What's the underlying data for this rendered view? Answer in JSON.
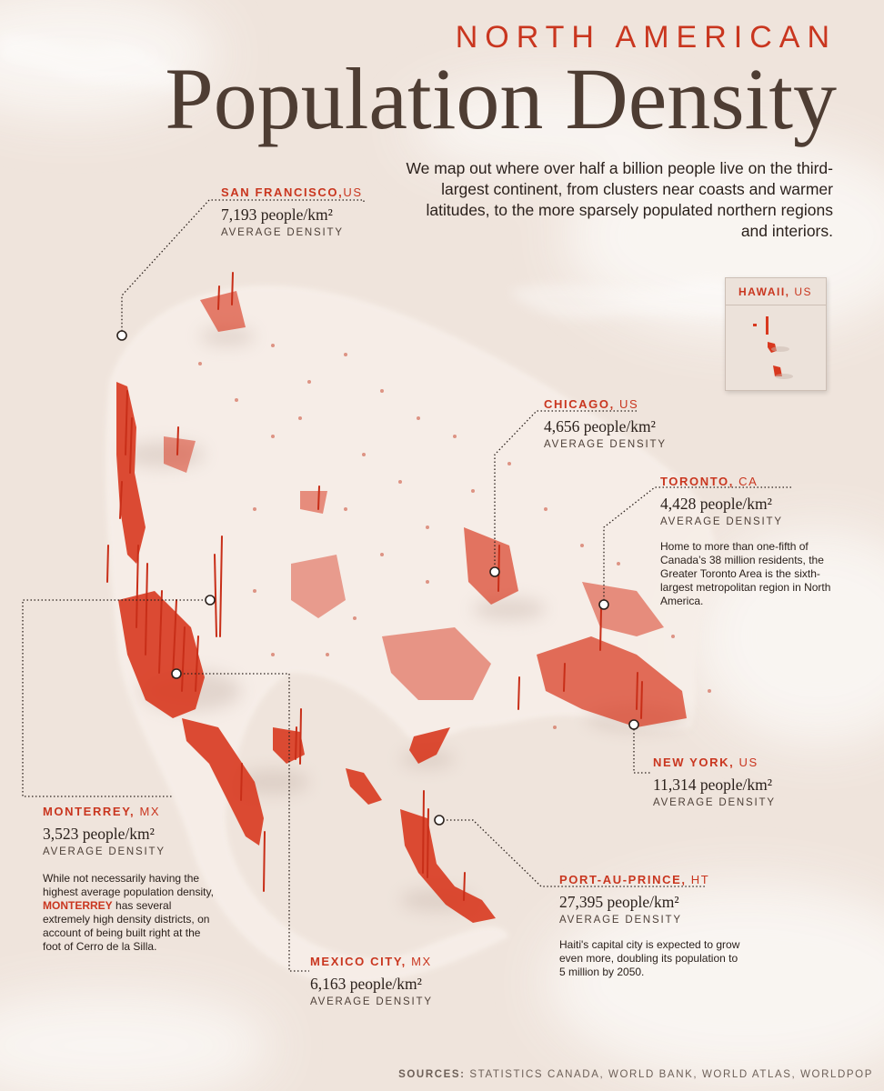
{
  "title": {
    "kicker": "NORTH AMERICAN",
    "main": "Population Density"
  },
  "intro": "We map out where over half a billion people live on the third-largest continent, from clusters near coasts and warmer latitudes, to the more sparsely populated northern regions and interiors.",
  "common": {
    "unit": "people/km²",
    "density_label": "AVERAGE DENSITY"
  },
  "cities": {
    "san_francisco": {
      "name": "SAN FRANCISCO,",
      "country": "US",
      "value": "7,193 people/km²"
    },
    "chicago": {
      "name": "CHICAGO,",
      "country": "US",
      "value": "4,656 people/km²"
    },
    "toronto": {
      "name": "TORONTO,",
      "country": "CA",
      "value": "4,428 people/km²",
      "note": "Home to more than one-fifth of Canada’s 38 million residents, the Greater Toronto Area is the sixth-largest metropolitan region in North America."
    },
    "new_york": {
      "name": "NEW YORK,",
      "country": "US",
      "value": "11,314 people/km²"
    },
    "monterrey": {
      "name": "MONTERREY,",
      "country": "MX",
      "value": "3,523 people/km²",
      "note_before": "While not necessarily having the highest average population density,",
      "note_bold": "MONTERREY",
      "note_after": "has several extremely high density districts, on account of being built right at the foot of Cerro de la Silla."
    },
    "mexico_city": {
      "name": "MEXICO CITY,",
      "country": "MX",
      "value": "6,163 people/km²"
    },
    "port_au_prince": {
      "name": "PORT-AU-PRINCE,",
      "country": "HT",
      "value": "27,395 people/km²",
      "note": "Haiti's capital city is expected to grow even more, doubling its population to 5 million by 2050."
    }
  },
  "inset": {
    "name": "HAWAII,",
    "country": "US"
  },
  "sources": {
    "label": "SOURCES:",
    "text": "STATISTICS CANADA, WORLD BANK, WORLD ATLAS, WORLDPOP"
  },
  "colors": {
    "accent": "#c9361f",
    "title": "#4e3d33",
    "background": "#f1e7df"
  }
}
